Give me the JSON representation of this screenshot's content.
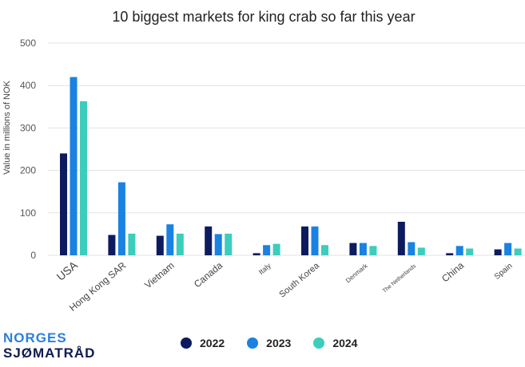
{
  "chart_data": {
    "type": "bar",
    "title": "10 biggest markets for king crab so far this year",
    "ylabel": "Value in millions of NOK",
    "xlabel": "",
    "ylim": [
      0,
      500
    ],
    "yticks": [
      0,
      100,
      200,
      300,
      400,
      500
    ],
    "grid": true,
    "legend_position": "bottom",
    "categories": [
      "USA",
      "Hong Kong SAR",
      "Vietnam",
      "Canada",
      "Italy",
      "South Korea",
      "Denmark",
      "The Netherlands",
      "China",
      "Spain"
    ],
    "series": [
      {
        "name": "2022",
        "color": "#0d1b5e",
        "values": [
          240,
          48,
          46,
          68,
          5,
          68,
          29,
          79,
          5,
          14
        ]
      },
      {
        "name": "2023",
        "color": "#1a82e2",
        "values": [
          420,
          172,
          73,
          50,
          24,
          68,
          29,
          31,
          22,
          29
        ]
      },
      {
        "name": "2024",
        "color": "#3ccdbd",
        "values": [
          363,
          51,
          51,
          51,
          27,
          24,
          22,
          18,
          16,
          16
        ]
      }
    ]
  },
  "logo": {
    "line1": "NORGES",
    "line2": "SJØMATRÅD"
  }
}
